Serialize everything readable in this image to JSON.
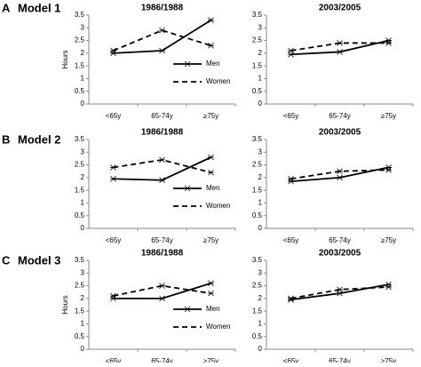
{
  "panels": [
    {
      "letter": "A",
      "label": "Model 1"
    },
    {
      "letter": "B",
      "label": "Model 2"
    },
    {
      "letter": "C",
      "label": "Model 3"
    }
  ],
  "chart_data": [
    {
      "type": "line",
      "title": "1986/1988",
      "y_label": "Hours",
      "categories": [
        "<65y",
        "65-74y",
        "≥75y"
      ],
      "series": [
        {
          "name": "Men",
          "color": "#000000",
          "line_style": "solid",
          "values": [
            2.0,
            2.1,
            3.3
          ]
        },
        {
          "name": "Women",
          "color": "#000000",
          "line_style": "dashed",
          "values": [
            2.1,
            2.9,
            2.3
          ]
        }
      ],
      "ylim": [
        0,
        3.5
      ],
      "yticks": [
        0,
        0.5,
        1,
        1.5,
        2,
        2.5,
        3,
        3.5
      ],
      "legend": "right"
    },
    {
      "type": "line",
      "title": "2003/2005",
      "categories": [
        "<65y",
        "65-74y",
        "≥75y"
      ],
      "series": [
        {
          "color": "#000000",
          "line_style": "solid",
          "values": [
            1.95,
            2.05,
            2.5
          ]
        },
        {
          "color": "#000000",
          "line_style": "dashed",
          "values": [
            2.1,
            2.4,
            2.4
          ]
        }
      ],
      "ylim": [
        0,
        3.5
      ],
      "yticks": [
        0,
        0.5,
        1,
        1.5,
        2,
        2.5,
        3,
        3.5
      ]
    },
    {
      "type": "line",
      "title": "1986/1988",
      "categories": [
        "<65y",
        "65-74y",
        "≥75y"
      ],
      "series": [
        {
          "name": "Men",
          "color": "#000000",
          "line_style": "solid",
          "values": [
            1.95,
            1.9,
            2.8
          ]
        },
        {
          "name": "Women",
          "color": "#000000",
          "line_style": "dashed",
          "values": [
            2.4,
            2.7,
            2.2
          ]
        }
      ],
      "ylim": [
        0,
        3.5
      ],
      "yticks": [
        0,
        0.5,
        1,
        1.5,
        2,
        2.5,
        3,
        3.5
      ],
      "legend": "right"
    },
    {
      "type": "line",
      "title": "2003/2005",
      "categories": [
        "<65y",
        "65-74y",
        "≥75y"
      ],
      "series": [
        {
          "color": "#000000",
          "line_style": "solid",
          "values": [
            1.85,
            2.0,
            2.4
          ]
        },
        {
          "color": "#000000",
          "line_style": "dashed",
          "values": [
            1.95,
            2.25,
            2.3
          ]
        }
      ],
      "ylim": [
        0,
        3.5
      ],
      "yticks": [
        0,
        0.5,
        1,
        1.5,
        2,
        2.5,
        3,
        3.5
      ]
    },
    {
      "type": "line",
      "title": "1986/1988",
      "y_label": "Hours",
      "categories": [
        "<65y",
        "65-74y",
        "≥75y"
      ],
      "series": [
        {
          "name": "Men",
          "color": "#000000",
          "line_style": "solid",
          "values": [
            2.0,
            2.0,
            2.6
          ]
        },
        {
          "name": "Women",
          "color": "#000000",
          "line_style": "dashed",
          "values": [
            2.1,
            2.5,
            2.2
          ]
        }
      ],
      "ylim": [
        0,
        3.5
      ],
      "yticks": [
        0,
        0.5,
        1,
        1.5,
        2,
        2.5,
        3,
        3.5
      ],
      "legend": "right"
    },
    {
      "type": "line",
      "title": "2003/2005",
      "categories": [
        "<65y",
        "65-74y",
        "≥75y"
      ],
      "series": [
        {
          "color": "#000000",
          "line_style": "solid",
          "values": [
            1.95,
            2.2,
            2.55
          ]
        },
        {
          "color": "#000000",
          "line_style": "dashed",
          "values": [
            2.0,
            2.35,
            2.45
          ]
        }
      ],
      "ylim": [
        0,
        3.5
      ],
      "yticks": [
        0,
        0.5,
        1,
        1.5,
        2,
        2.5,
        3,
        3.5
      ]
    }
  ]
}
